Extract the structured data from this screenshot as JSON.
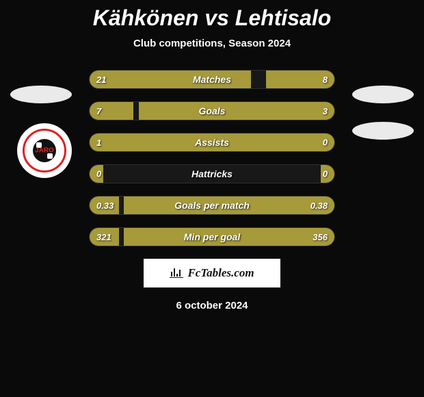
{
  "title": "Kähkönen vs Lehtisalo",
  "subtitle": "Club competitions, Season 2024",
  "date": "6 october 2024",
  "logo_text": "FcTables.com",
  "club_badge_text": "JARO",
  "colors": {
    "left_bar": "#a69a3a",
    "right_bar": "#a69a3a",
    "empty_bar": "rgba(80,80,80,0.2)",
    "background": "#0a0a0a",
    "badge_bg": "#eaeaea"
  },
  "stats": [
    {
      "label": "Matches",
      "left_val": "21",
      "right_val": "8",
      "left_pct": 66,
      "right_pct": 28
    },
    {
      "label": "Goals",
      "left_val": "7",
      "right_val": "3",
      "left_pct": 18,
      "right_pct": 80
    },
    {
      "label": "Assists",
      "left_val": "1",
      "right_val": "0",
      "left_pct": 98,
      "right_pct": 0
    },
    {
      "label": "Hattricks",
      "left_val": "0",
      "right_val": "0",
      "left_pct": 0,
      "right_pct": 0
    },
    {
      "label": "Goals per match",
      "left_val": "0.33",
      "right_val": "0.38",
      "left_pct": 12,
      "right_pct": 86
    },
    {
      "label": "Min per goal",
      "left_val": "321",
      "right_val": "356",
      "left_pct": 12,
      "right_pct": 86
    }
  ]
}
